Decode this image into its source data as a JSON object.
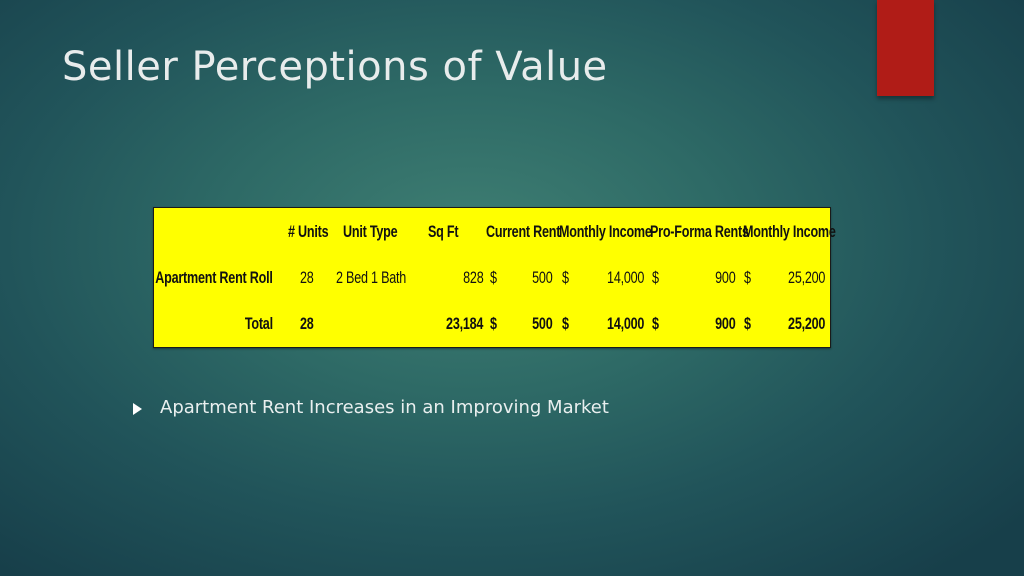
{
  "slide": {
    "title": "Seller Perceptions of Value",
    "accent_color": "#b01c17",
    "bullet_icon": "triangle-bullet-icon",
    "bullets": [
      "Apartment Rent Increases in an Improving Market"
    ]
  },
  "table": {
    "background_color": "#ffff00",
    "headers": {
      "units": "# Units",
      "unit_type": "Unit Type",
      "sqft": "Sq Ft",
      "current_rent": "Current Rent",
      "monthly_income": "Monthly Income",
      "pro_forma_rents": "Pro-Forma Rents",
      "monthly_income_2": "Monthly Income"
    },
    "rows": [
      {
        "label": "Apartment Rent Roll",
        "units": "28",
        "unit_type": "2 Bed 1 Bath",
        "sqft": "828",
        "cur_symbol": "$",
        "current_rent": "500",
        "mi_symbol": "$",
        "monthly_income": "14,000",
        "pf_symbol": "$",
        "pro_forma_rents": "900",
        "mi2_symbol": "$",
        "monthly_income_2": "25,200"
      },
      {
        "label": "Total",
        "units": "28",
        "unit_type": "",
        "sqft": "23,184",
        "cur_symbol": "$",
        "current_rent": "500",
        "mi_symbol": "$",
        "monthly_income": "14,000",
        "pf_symbol": "$",
        "pro_forma_rents": "900",
        "mi2_symbol": "$",
        "monthly_income_2": "25,200"
      }
    ]
  }
}
